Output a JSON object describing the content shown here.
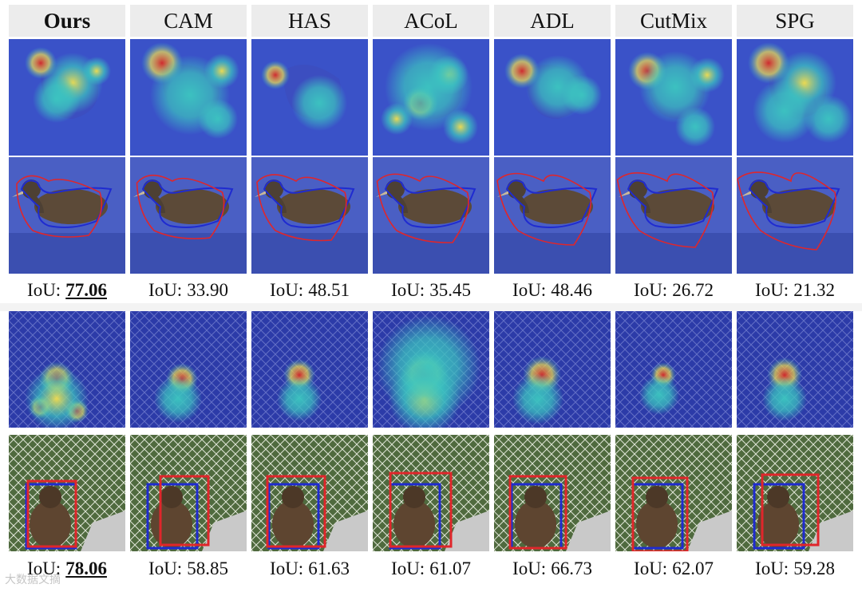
{
  "methods": [
    "Ours",
    "CAM",
    "HAS",
    "ACoL",
    "ADL",
    "CutMix",
    "SPG"
  ],
  "bird": {
    "iou_label": "IoU:",
    "iou_values": [
      "77.06",
      "33.90",
      "48.51",
      "35.45",
      "48.46",
      "26.72",
      "21.32"
    ],
    "best_index": 0
  },
  "monkey": {
    "iou_label": "IoU:",
    "iou_values": [
      "78.06",
      "58.85",
      "61.63",
      "61.07",
      "66.73",
      "62.07",
      "59.28"
    ],
    "best_index": 0
  },
  "watermark": "大数据文摘",
  "colors": {
    "heat_high": "#d62828",
    "heat_mid": "#f4e04d",
    "heat_low": "#3cc7c0",
    "heat_bg": "#2f3fb8",
    "gt_box": "#1f2bd0",
    "pred_box": "#e0262b"
  },
  "legend_hint": {
    "gt": "blue",
    "pred": "red"
  }
}
